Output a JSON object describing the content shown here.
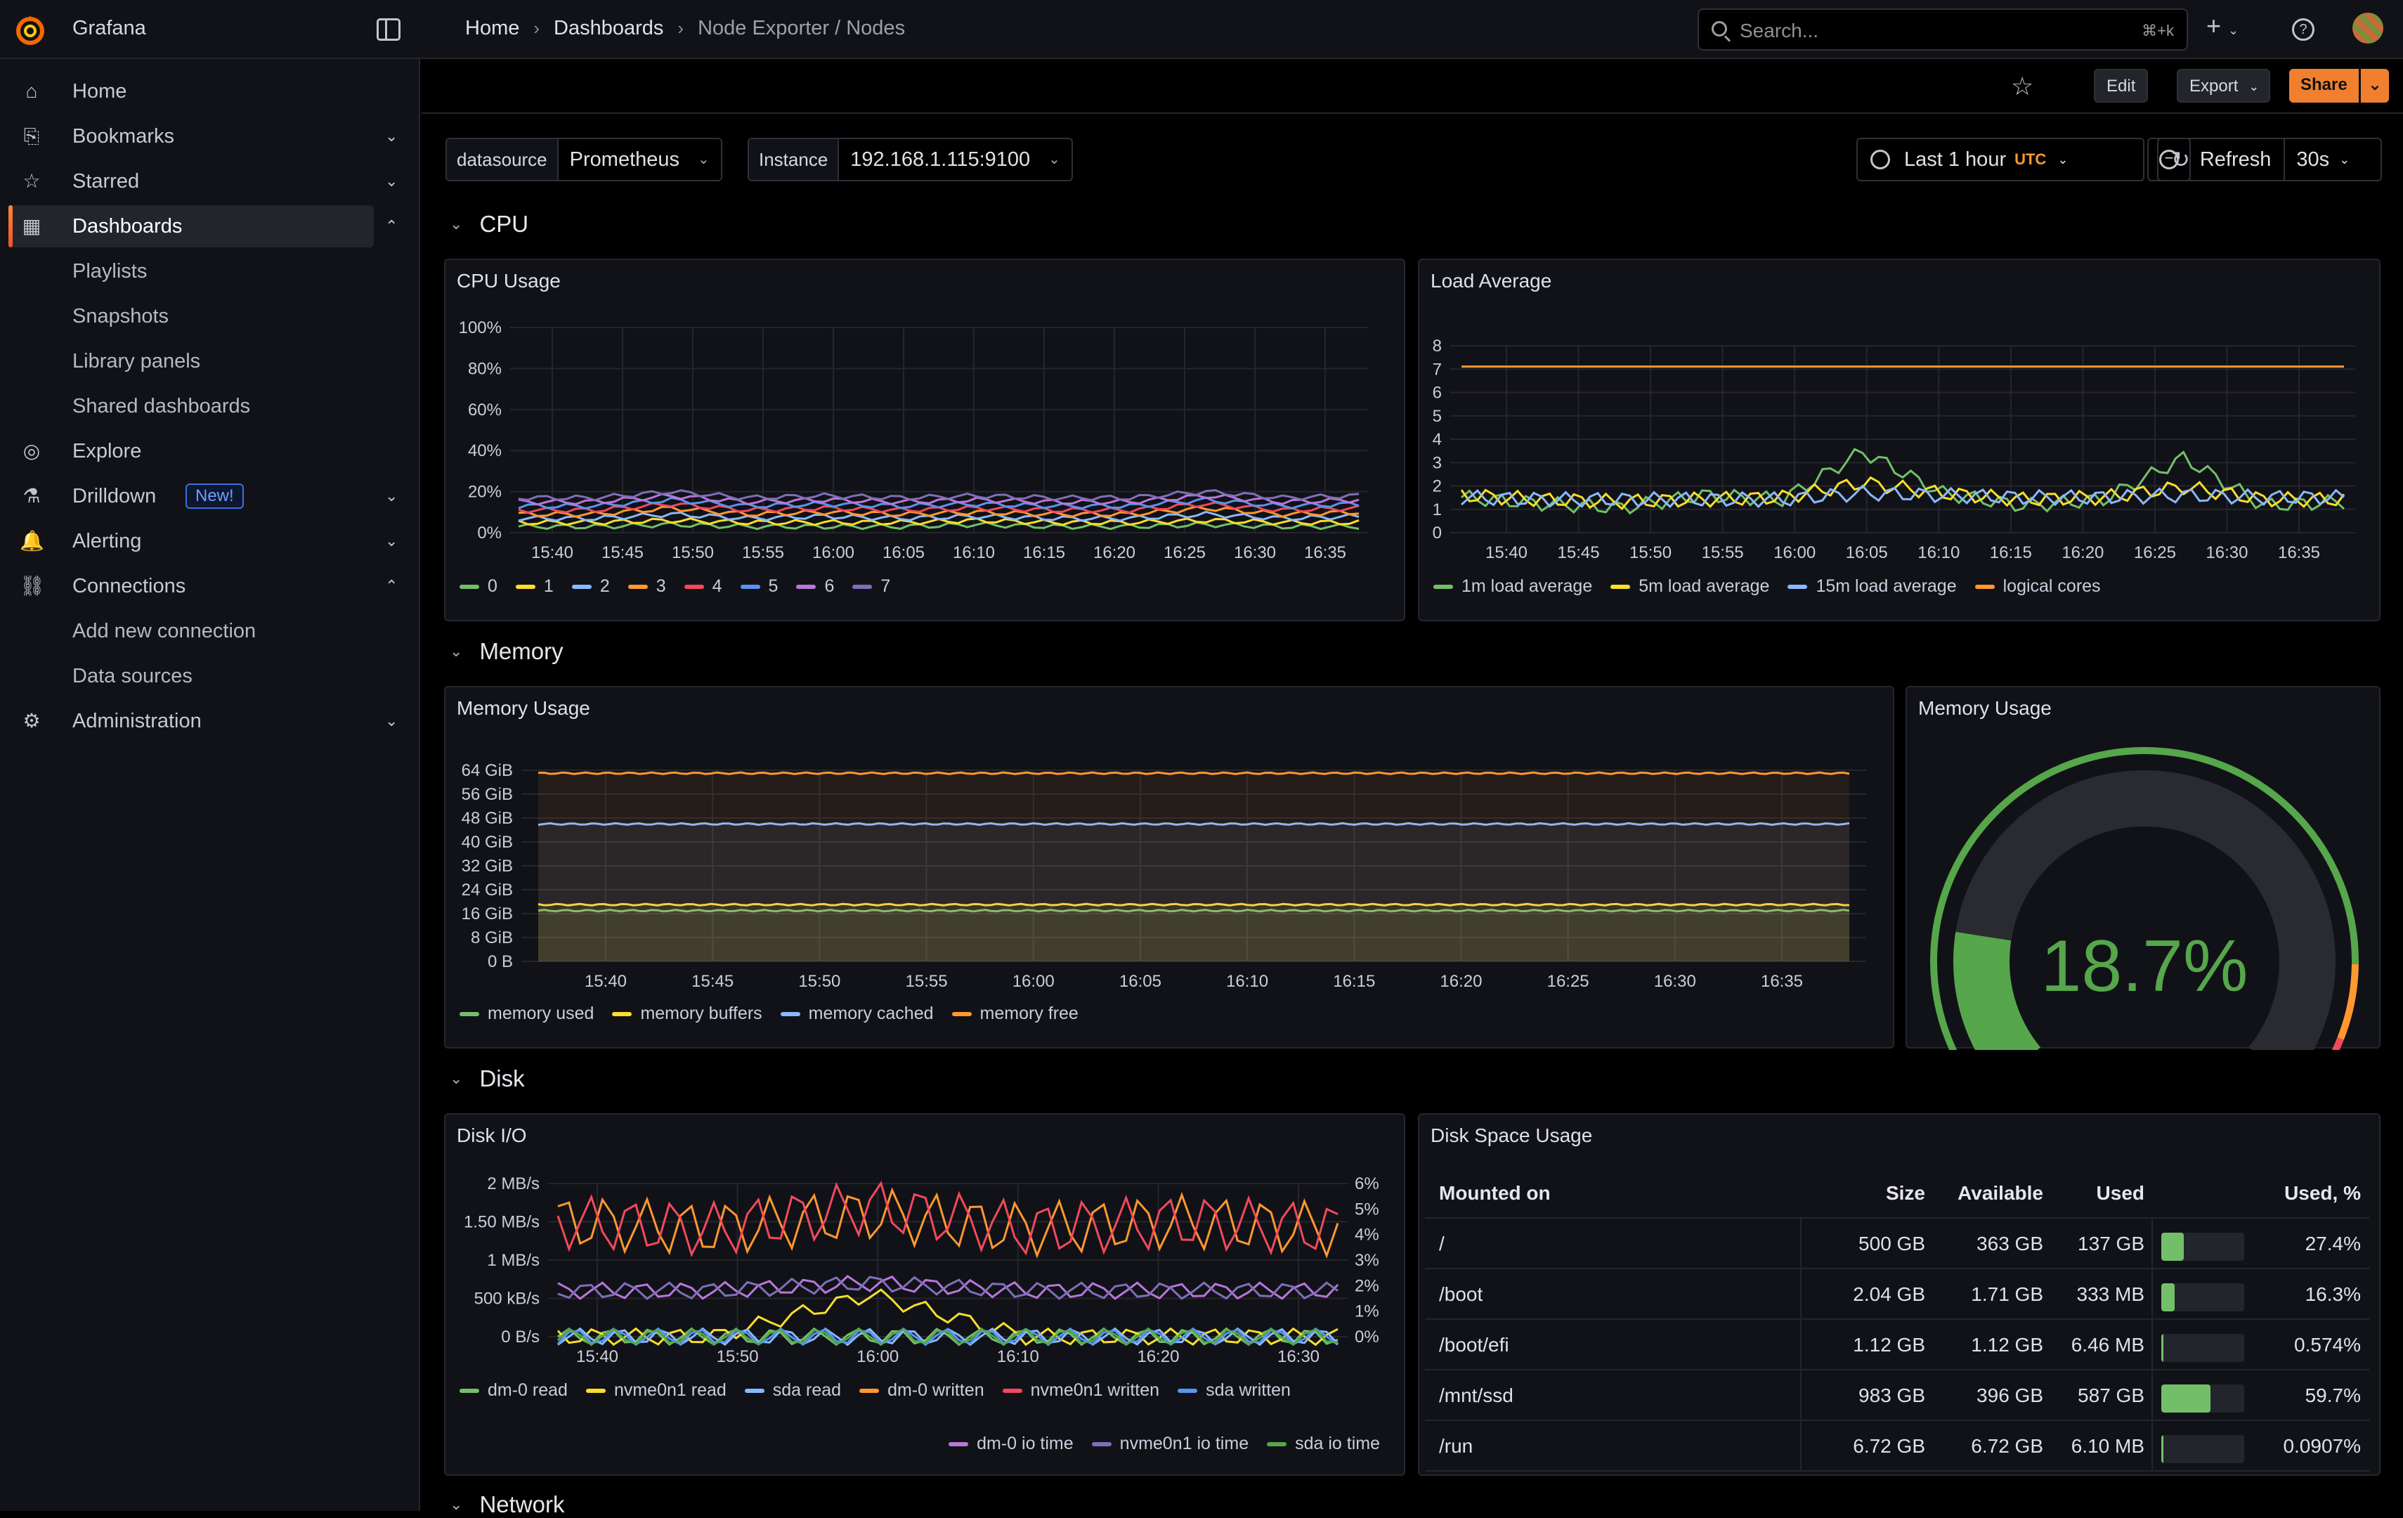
{
  "app": {
    "title": "Grafana"
  },
  "breadcrumbs": [
    "Home",
    "Dashboards",
    "Node Exporter / Nodes"
  ],
  "search": {
    "placeholder": "Search...",
    "shortcut": "⌘+k"
  },
  "nav": [
    {
      "label": "Home",
      "icon": "home-icon"
    },
    {
      "label": "Bookmarks",
      "icon": "bookmark-icon"
    },
    {
      "label": "Starred",
      "icon": "star-icon"
    },
    {
      "label": "Dashboards",
      "icon": "grid-icon"
    },
    {
      "label": "Playlists"
    },
    {
      "label": "Snapshots"
    },
    {
      "label": "Library panels"
    },
    {
      "label": "Shared dashboards"
    },
    {
      "label": "Explore",
      "icon": "compass-icon"
    },
    {
      "label": "Drilldown",
      "icon": "microscope-icon",
      "badge": "New!"
    },
    {
      "label": "Alerting",
      "icon": "bell-icon"
    },
    {
      "label": "Connections",
      "icon": "connections-icon"
    },
    {
      "label": "Add new connection"
    },
    {
      "label": "Data sources"
    },
    {
      "label": "Administration",
      "icon": "gear-icon"
    }
  ],
  "toolbar": {
    "edit": "Edit",
    "export": "Export",
    "share": "Share"
  },
  "variables": {
    "datasource": {
      "label": "datasource",
      "value": "Prometheus"
    },
    "instance": {
      "label": "Instance",
      "value": "192.168.1.115:9100"
    }
  },
  "timepicker": {
    "range": "Last 1 hour",
    "tz": "UTC",
    "refresh": "Refresh",
    "interval": "30s"
  },
  "rows": {
    "cpu": "CPU",
    "memory": "Memory",
    "disk": "Disk",
    "network": "Network"
  },
  "panels": {
    "cpu": {
      "title": "CPU Usage"
    },
    "load": {
      "title": "Load Average"
    },
    "mem": {
      "title": "Memory Usage"
    },
    "gauge": {
      "title": "Memory Usage",
      "value": "18.7%"
    },
    "diskio": {
      "title": "Disk I/O"
    },
    "diskspace": {
      "title": "Disk Space Usage"
    }
  },
  "colors": {
    "green": "#73bf69",
    "yellow": "#fade2a",
    "blue": "#8ab8ff",
    "orange": "#ff9830",
    "red": "#f2495c",
    "purple": "#b877d9",
    "lavender": "#806eb7"
  },
  "chart_data": [
    {
      "type": "line",
      "title": "CPU Usage",
      "x": [
        "15:40",
        "15:45",
        "15:50",
        "15:55",
        "16:00",
        "16:05",
        "16:10",
        "16:15",
        "16:20",
        "16:25",
        "16:30",
        "16:35"
      ],
      "ylim": [
        0,
        100
      ],
      "yticks": [
        "100%",
        "80%",
        "60%",
        "40%",
        "20%",
        "0%"
      ],
      "series": [
        {
          "name": "0",
          "color": "#73bf69",
          "values": [
            3,
            3,
            4,
            3,
            3,
            3,
            4,
            3,
            3,
            4,
            3,
            3
          ]
        },
        {
          "name": "1",
          "color": "#fade2a",
          "values": [
            5,
            5,
            6,
            5,
            5,
            5,
            6,
            5,
            5,
            6,
            5,
            5
          ]
        },
        {
          "name": "2",
          "color": "#8ab8ff",
          "values": [
            7,
            7,
            9,
            7,
            8,
            7,
            8,
            7,
            7,
            9,
            7,
            8
          ]
        },
        {
          "name": "3",
          "color": "#ff9830",
          "values": [
            9,
            9,
            12,
            9,
            10,
            9,
            10,
            9,
            9,
            12,
            9,
            10
          ]
        },
        {
          "name": "4",
          "color": "#f2495c",
          "values": [
            11,
            11,
            14,
            11,
            12,
            11,
            12,
            11,
            11,
            14,
            11,
            12
          ]
        },
        {
          "name": "5",
          "color": "#5794f2",
          "values": [
            13,
            13,
            16,
            13,
            14,
            13,
            14,
            13,
            13,
            16,
            13,
            14
          ]
        },
        {
          "name": "6",
          "color": "#b877d9",
          "values": [
            15,
            15,
            18,
            15,
            16,
            15,
            16,
            15,
            15,
            18,
            15,
            16
          ]
        },
        {
          "name": "7",
          "color": "#806eb7",
          "values": [
            17,
            17,
            20,
            17,
            18,
            17,
            18,
            17,
            17,
            20,
            17,
            18
          ]
        }
      ]
    },
    {
      "type": "line",
      "title": "Load Average",
      "x": [
        "15:40",
        "15:45",
        "15:50",
        "15:55",
        "16:00",
        "16:05",
        "16:10",
        "16:15",
        "16:20",
        "16:25",
        "16:30",
        "16:35"
      ],
      "ylim": [
        0,
        9
      ],
      "yticks": [
        "8",
        "7",
        "6",
        "5",
        "4",
        "3",
        "2",
        "1",
        "0"
      ],
      "series": [
        {
          "name": "1m load average",
          "color": "#73bf69",
          "values": [
            1.7,
            1.4,
            1.2,
            1.8,
            1.6,
            3.9,
            1.9,
            1.3,
            1.6,
            3.6,
            1.3,
            1.5
          ]
        },
        {
          "name": "5m load average",
          "color": "#fade2a",
          "values": [
            1.8,
            1.6,
            1.5,
            1.6,
            1.7,
            2.4,
            1.9,
            1.6,
            1.7,
            2.2,
            1.6,
            1.6
          ]
        },
        {
          "name": "15m load average",
          "color": "#8ab8ff",
          "values": [
            1.7,
            1.6,
            1.6,
            1.6,
            1.6,
            1.9,
            1.8,
            1.7,
            1.7,
            1.8,
            1.7,
            1.7
          ]
        },
        {
          "name": "logical cores",
          "color": "#ff9830",
          "values": [
            8,
            8,
            8,
            8,
            8,
            8,
            8,
            8,
            8,
            8,
            8,
            8
          ]
        }
      ]
    },
    {
      "type": "area",
      "title": "Memory Usage",
      "x": [
        "15:40",
        "15:45",
        "15:50",
        "15:55",
        "16:00",
        "16:05",
        "16:10",
        "16:15",
        "16:20",
        "16:25",
        "16:30",
        "16:35"
      ],
      "ylim": [
        0,
        64
      ],
      "yticks": [
        "64 GiB",
        "56 GiB",
        "48 GiB",
        "40 GiB",
        "32 GiB",
        "24 GiB",
        "16 GiB",
        "8 GiB",
        "0 B"
      ],
      "series": [
        {
          "name": "memory used",
          "color": "#73bf69",
          "values": [
            17,
            17,
            17,
            17,
            17,
            17,
            17,
            17,
            17,
            17,
            17,
            17
          ]
        },
        {
          "name": "memory buffers",
          "color": "#fade2a",
          "values": [
            19,
            19,
            19,
            19,
            19,
            19,
            19,
            19,
            19,
            19,
            19,
            19
          ]
        },
        {
          "name": "memory cached",
          "color": "#8ab8ff",
          "values": [
            46,
            46,
            46,
            46,
            46,
            46,
            46,
            46,
            46,
            46,
            46,
            46
          ]
        },
        {
          "name": "memory free",
          "color": "#ff9830",
          "values": [
            63,
            63,
            63,
            63,
            63,
            63,
            63,
            63,
            63,
            63,
            63,
            63
          ]
        }
      ]
    },
    {
      "type": "line",
      "title": "Disk I/O",
      "x": [
        "15:40",
        "15:50",
        "16:00",
        "16:10",
        "16:20",
        "16:30"
      ],
      "ylim": [
        0,
        2
      ],
      "yticks": [
        "2 MB/s",
        "1.50 MB/s",
        "1 MB/s",
        "500 kB/s",
        "0 B/s"
      ],
      "y2ticks": [
        "6%",
        "5%",
        "4%",
        "3%",
        "2%",
        "1%",
        "0%"
      ],
      "series": [
        {
          "name": "dm-0 read",
          "color": "#73bf69",
          "values": [
            0,
            0,
            0,
            0,
            0,
            0
          ]
        },
        {
          "name": "nvme0n1 read",
          "color": "#fade2a",
          "values": [
            0,
            0,
            0.55,
            0,
            0,
            0
          ]
        },
        {
          "name": "sda read",
          "color": "#8ab8ff",
          "values": [
            0,
            0,
            0,
            0,
            0,
            0
          ]
        },
        {
          "name": "dm-0 written",
          "color": "#ff9830",
          "values": [
            1.5,
            1.4,
            1.6,
            1.4,
            1.5,
            1.4
          ]
        },
        {
          "name": "nvme0n1 written",
          "color": "#f2495c",
          "values": [
            1.5,
            1.4,
            1.7,
            1.4,
            1.5,
            1.4
          ]
        },
        {
          "name": "sda written",
          "color": "#5794f2",
          "values": [
            0,
            0,
            0,
            0,
            0,
            0
          ]
        },
        {
          "name": "dm-0 io time",
          "color": "#b877d9",
          "values": [
            0.6,
            0.6,
            0.7,
            0.6,
            0.6,
            0.6
          ]
        },
        {
          "name": "nvme0n1 io time",
          "color": "#806eb7",
          "values": [
            0.6,
            0.6,
            0.7,
            0.6,
            0.6,
            0.6
          ]
        },
        {
          "name": "sda io time",
          "color": "#56a64b",
          "values": [
            0,
            0,
            0,
            0,
            0,
            0
          ]
        }
      ]
    },
    {
      "type": "table",
      "title": "Disk Space Usage",
      "columns": [
        "Mounted on",
        "Size",
        "Available",
        "Used",
        "Used, %"
      ],
      "rows": [
        {
          "mount": "/",
          "size": "500 GB",
          "avail": "363 GB",
          "used": "137 GB",
          "pct": "27.4%",
          "frac": 0.274
        },
        {
          "mount": "/boot",
          "size": "2.04 GB",
          "avail": "1.71 GB",
          "used": "333 MB",
          "pct": "16.3%",
          "frac": 0.163
        },
        {
          "mount": "/boot/efi",
          "size": "1.12 GB",
          "avail": "1.12 GB",
          "used": "6.46 MB",
          "pct": "0.574%",
          "frac": 0.00574
        },
        {
          "mount": "/mnt/ssd",
          "size": "983 GB",
          "avail": "396 GB",
          "used": "587 GB",
          "pct": "59.7%",
          "frac": 0.597
        },
        {
          "mount": "/run",
          "size": "6.72 GB",
          "avail": "6.72 GB",
          "used": "6.10 MB",
          "pct": "0.0907%",
          "frac": 0.000907
        }
      ]
    }
  ]
}
